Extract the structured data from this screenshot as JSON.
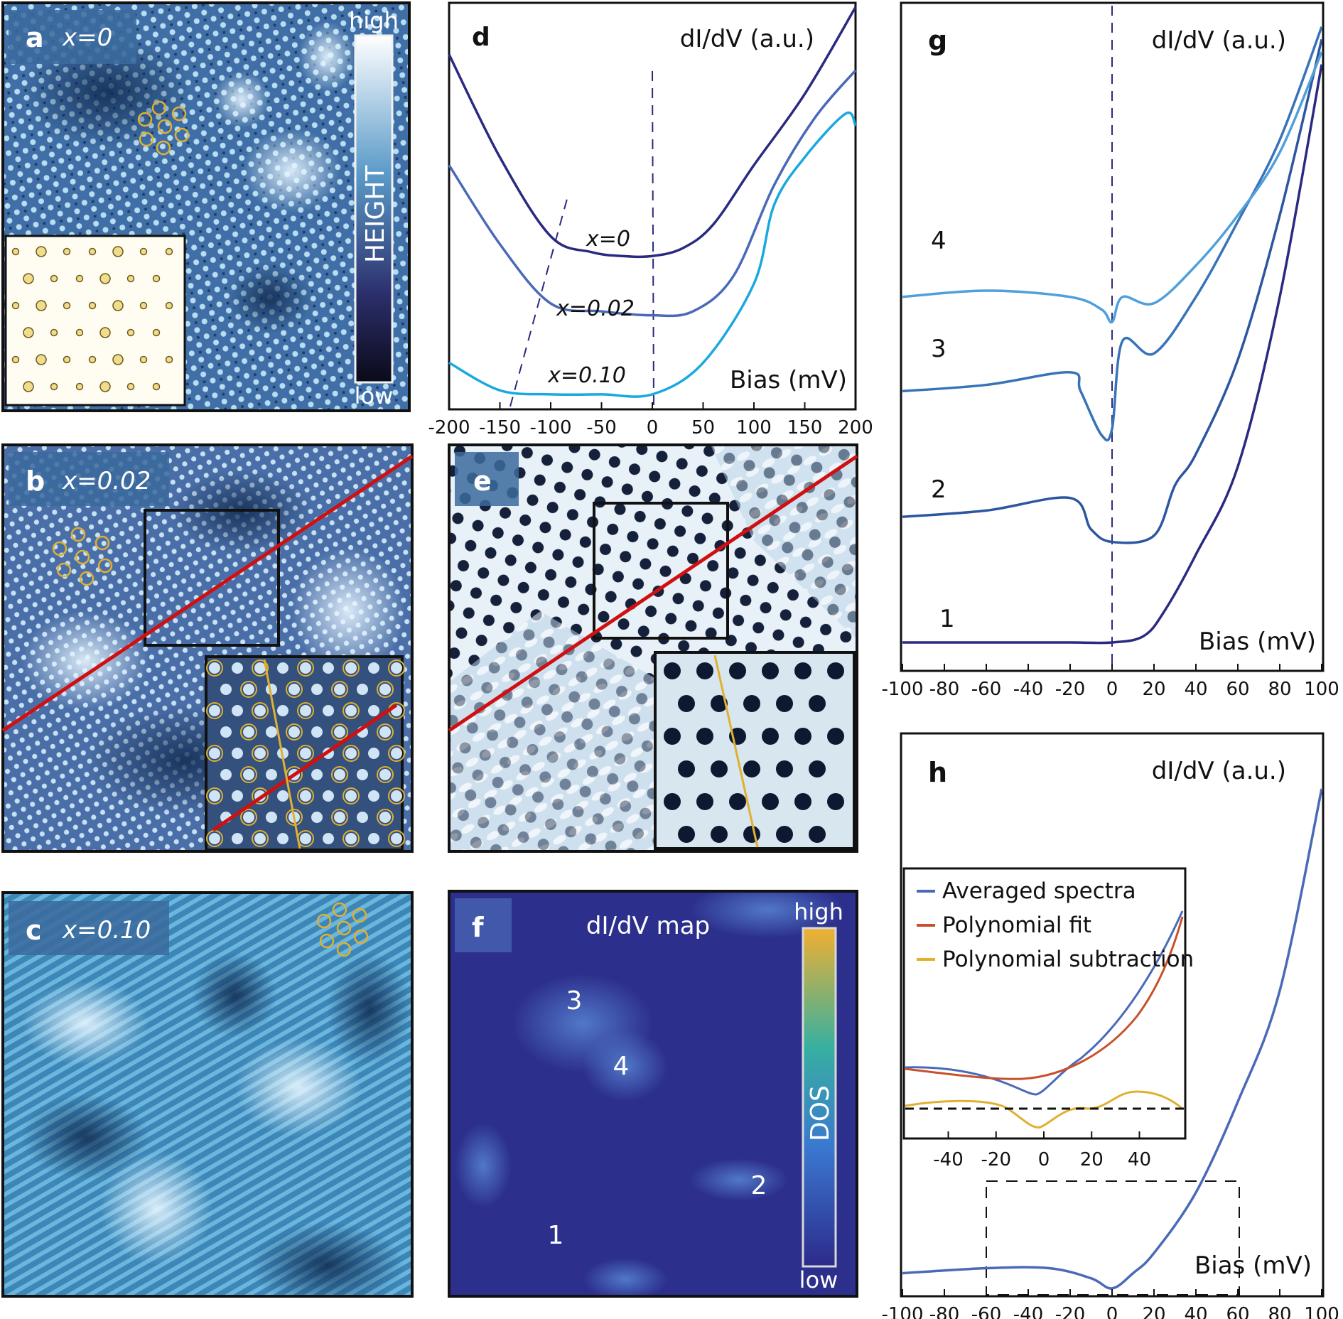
{
  "panels": {
    "a": {
      "letter": "a",
      "label": "x=0",
      "cbar_high": "high",
      "cbar_low": "low",
      "cbar_title": "HEIGHT"
    },
    "b": {
      "letter": "b",
      "label": "x=0.02"
    },
    "c": {
      "letter": "c",
      "label": "x=0.10"
    },
    "d": {
      "letter": "d",
      "ylabel": "dI/dV (a.u.)",
      "xlabel": "Bias (mV)"
    },
    "e": {
      "letter": "e"
    },
    "f": {
      "letter": "f",
      "title": "dI/dV map",
      "cbar_high": "high",
      "cbar_low": "low",
      "cbar_title": "DOS",
      "regions": [
        "1",
        "2",
        "3",
        "4"
      ]
    },
    "g": {
      "letter": "g",
      "ylabel": "dI/dV (a.u.)",
      "xlabel": "Bias (mV)"
    },
    "h": {
      "letter": "h",
      "ylabel": "dI/dV (a.u.)",
      "xlabel": "Bias (mV)"
    }
  },
  "colors": {
    "frame": "#111111",
    "red_line": "#d01010",
    "yellow": "#e0b030",
    "dark_blue": "#2a2a80",
    "mid_blue": "#4a6ab8",
    "cyan": "#1aa8e0"
  },
  "chart_data": [
    {
      "type": "line",
      "panel": "d",
      "ylabel": "dI/dV (a.u.)",
      "xlabel": "Bias (mV)",
      "xlim": [
        -200,
        200
      ],
      "xticks": [
        -200,
        -150,
        -100,
        -50,
        0,
        50,
        100,
        150,
        200
      ],
      "series": [
        {
          "name": "x=0",
          "color": "#2a2a80",
          "x": [
            -200,
            -150,
            -100,
            -60,
            -30,
            0,
            30,
            60,
            100,
            150,
            200
          ],
          "y": [
            88,
            62,
            42,
            38,
            37,
            37,
            39,
            45,
            60,
            78,
            100
          ]
        },
        {
          "name": "x=0.02",
          "color": "#4a6ab8",
          "x": [
            -200,
            -150,
            -100,
            -50,
            0,
            40,
            80,
            120,
            160,
            200
          ],
          "y": [
            60,
            40,
            25,
            23,
            22,
            23,
            32,
            55,
            72,
            84
          ]
        },
        {
          "name": "x=0.10",
          "color": "#1aa8e0",
          "x": [
            -200,
            -150,
            -100,
            -50,
            0,
            50,
            100,
            120,
            150,
            190,
            200
          ],
          "y": [
            10,
            3,
            2,
            2,
            2,
            10,
            30,
            50,
            62,
            73,
            70
          ]
        }
      ]
    },
    {
      "type": "line",
      "panel": "g",
      "ylabel": "dI/dV (a.u.)",
      "xlabel": "Bias (mV)",
      "xlim": [
        -100,
        100
      ],
      "xticks": [
        -100,
        -80,
        -60,
        -40,
        -20,
        0,
        20,
        40,
        60,
        80,
        100
      ],
      "series": [
        {
          "name": "1",
          "color": "#2a2a80",
          "x": [
            -100,
            -60,
            -20,
            0,
            15,
            25,
            40,
            60,
            80,
            100
          ],
          "y": [
            0,
            0,
            0,
            0,
            1,
            5,
            14,
            28,
            55,
            92
          ]
        },
        {
          "name": "2",
          "color": "#2d56a0",
          "x": [
            -100,
            -60,
            -20,
            -10,
            0,
            20,
            30,
            40,
            60,
            80,
            100
          ],
          "y": [
            20,
            21,
            23,
            18,
            16,
            17,
            25,
            30,
            45,
            68,
            96
          ]
        },
        {
          "name": "3",
          "color": "#3873b8",
          "x": [
            -100,
            -60,
            -20,
            -15,
            -5,
            0,
            5,
            20,
            40,
            60,
            80,
            100
          ],
          "y": [
            40,
            41,
            43,
            40,
            33,
            34,
            48,
            46,
            55,
            67,
            80,
            98
          ]
        },
        {
          "name": "4",
          "color": "#4f9fdc",
          "x": [
            -100,
            -60,
            -20,
            -5,
            0,
            5,
            20,
            40,
            60,
            80,
            100
          ],
          "y": [
            55,
            56,
            55,
            53,
            51,
            55,
            54,
            60,
            68,
            78,
            94
          ]
        }
      ]
    },
    {
      "type": "line",
      "panel": "h",
      "ylabel": "dI/dV (a.u.)",
      "xlabel": "Bias (mV)",
      "xlim": [
        -100,
        100
      ],
      "xticks": [
        -100,
        -80,
        -60,
        -40,
        -20,
        0,
        20,
        40,
        60,
        80,
        100
      ],
      "series": [
        {
          "name": "Averaged spectra",
          "color": "#4a6ab8",
          "x": [
            -100,
            -60,
            -30,
            -10,
            0,
            10,
            20,
            40,
            60,
            80,
            100
          ],
          "y": [
            4,
            5,
            5,
            3,
            1,
            4,
            8,
            20,
            38,
            60,
            100
          ]
        }
      ],
      "inset": {
        "xticks": [
          -40,
          -20,
          0,
          20,
          40
        ],
        "legend": [
          "Averaged spectra",
          "Polynomial fit",
          "Polynomial subtraction"
        ],
        "legend_colors": [
          "#4a6ab8",
          "#c8502a",
          "#e0b030"
        ]
      }
    }
  ]
}
